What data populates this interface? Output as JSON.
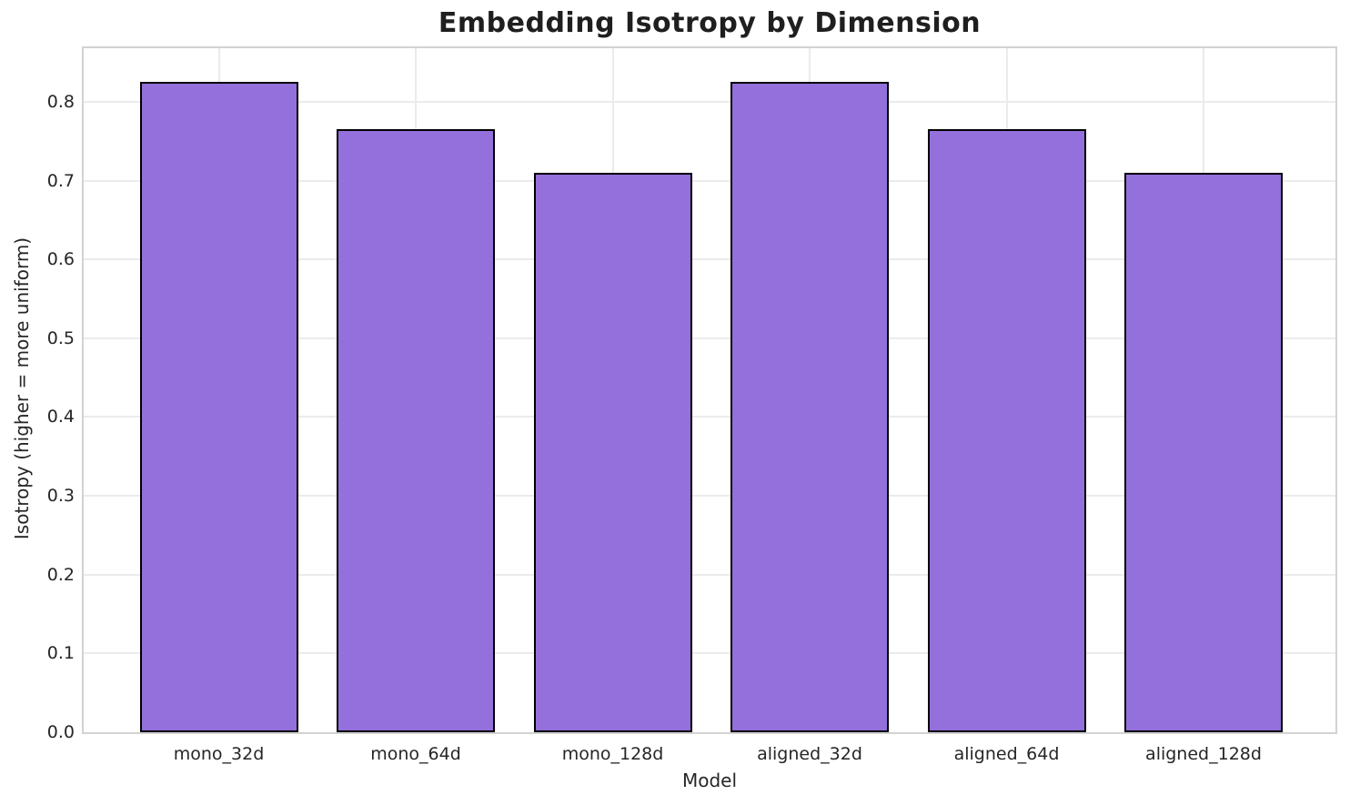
{
  "chart_data": {
    "type": "bar",
    "title": "Embedding Isotropy by Dimension",
    "xlabel": "Model",
    "ylabel": "Isotropy (higher = more uniform)",
    "categories": [
      "mono_32d",
      "mono_64d",
      "mono_128d",
      "aligned_32d",
      "aligned_64d",
      "aligned_128d"
    ],
    "values": [
      0.825,
      0.765,
      0.71,
      0.825,
      0.765,
      0.71
    ],
    "ylim": [
      0,
      0.868
    ],
    "yticks": [
      0.0,
      0.1,
      0.2,
      0.3,
      0.4,
      0.5,
      0.6,
      0.7,
      0.8
    ],
    "ytick_labels": [
      "0.0",
      "0.1",
      "0.2",
      "0.3",
      "0.4",
      "0.5",
      "0.6",
      "0.7",
      "0.8"
    ],
    "grid": true,
    "legend_position": "none",
    "colors": {
      "bar_fill": "#9370DB",
      "bar_edge": "#000000",
      "gridline": "#EBEBEB",
      "spine": "#D2D2D2",
      "text": "#262626"
    }
  }
}
